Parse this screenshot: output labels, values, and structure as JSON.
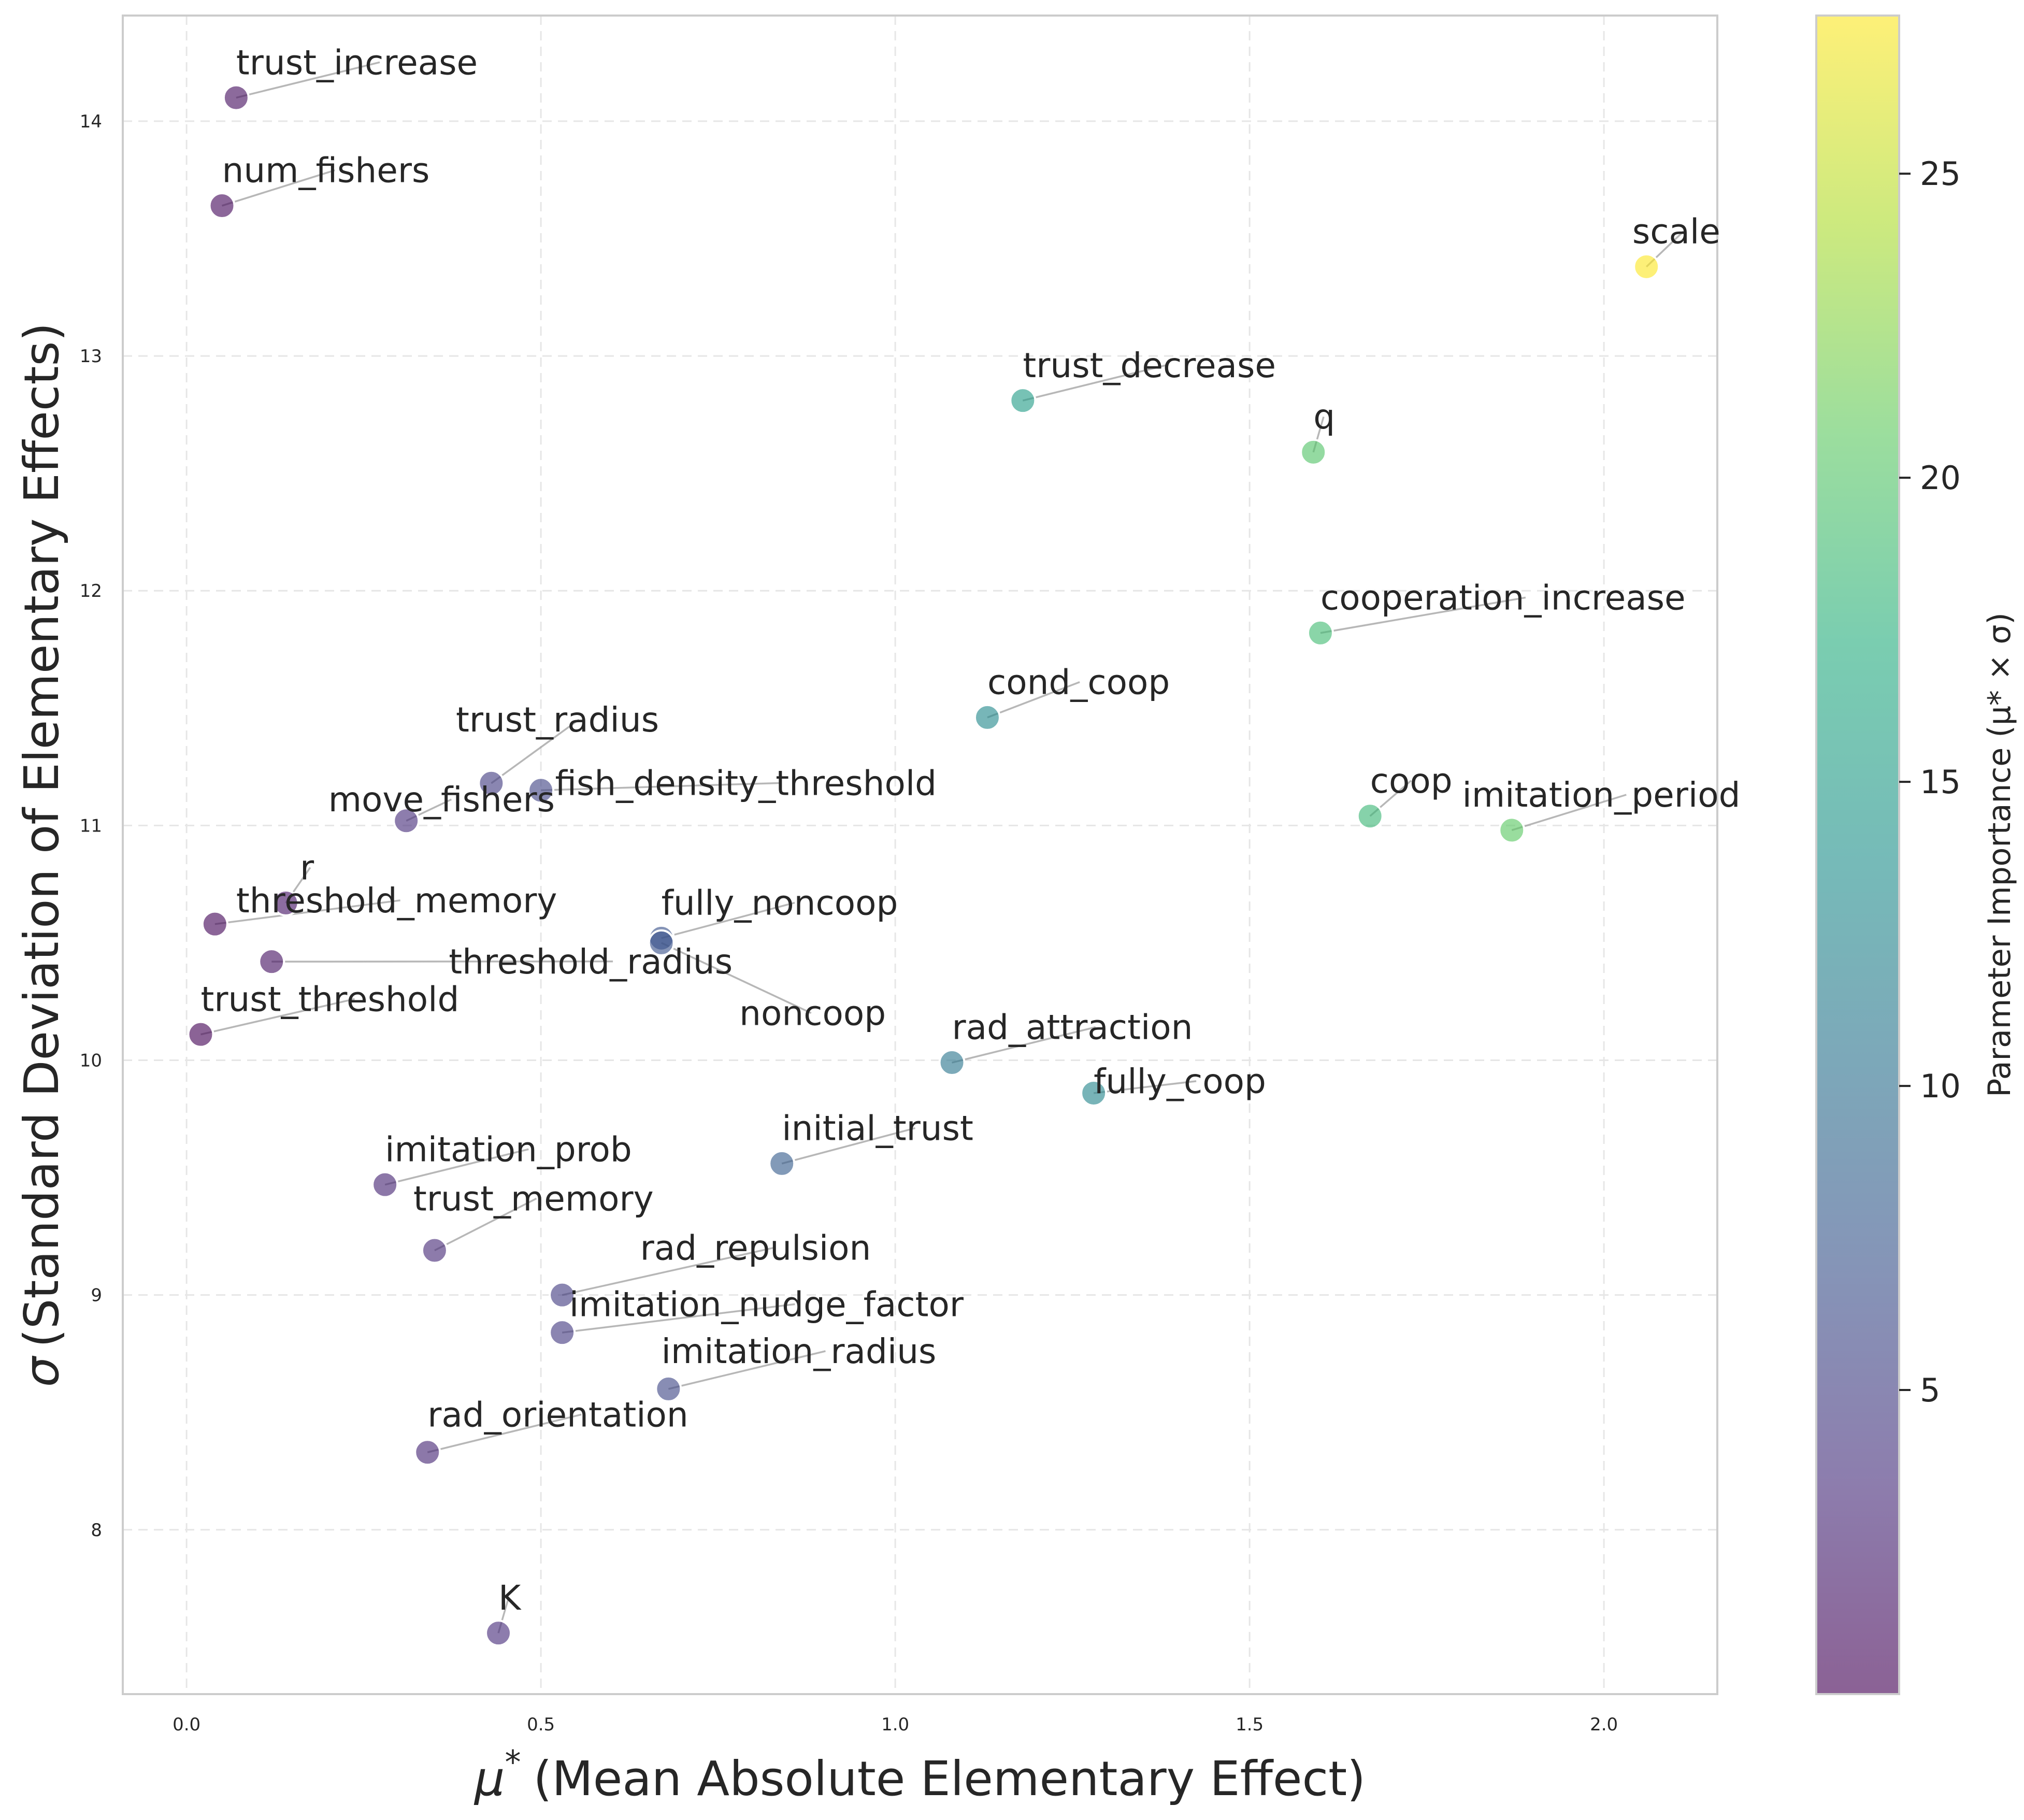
{
  "chart_data": {
    "type": "scatter",
    "xlabel_symbol": "μ",
    "xlabel_sup": "*",
    "xlabel": "(Mean Absolute Elementary Effect)",
    "ylabel_symbol": "σ",
    "ylabel": "(Standard Deviation of Elementary Effects)",
    "colorbar_label": "Parameter Importance (μ* × σ)",
    "xlim": [
      -0.09,
      2.16
    ],
    "ylim": [
      7.3,
      14.45
    ],
    "xticks": [
      0.0,
      0.5,
      1.0,
      1.5,
      2.0
    ],
    "xtick_labels": [
      "0.0",
      "0.5",
      "1.0",
      "1.5",
      "2.0"
    ],
    "yticks": [
      8,
      9,
      10,
      11,
      12,
      13,
      14
    ],
    "ytick_labels": [
      "8",
      "9",
      "10",
      "11",
      "12",
      "13",
      "14"
    ],
    "colorbar_range": [
      0,
      27.6
    ],
    "colorbar_ticks": [
      5,
      10,
      15,
      20,
      25
    ],
    "colorbar_tick_labels": [
      "5",
      "10",
      "15",
      "20",
      "25"
    ],
    "colormap": "viridis",
    "grid": true,
    "points": [
      {
        "name": "trust_increase",
        "x": 0.07,
        "y": 14.1,
        "label_x": 0.07,
        "label_y": 14.2
      },
      {
        "name": "num_fishers",
        "x": 0.05,
        "y": 13.64,
        "label_x": 0.05,
        "label_y": 13.74
      },
      {
        "name": "scale",
        "x": 2.06,
        "y": 13.38,
        "label_x": 2.04,
        "label_y": 13.48
      },
      {
        "name": "trust_decrease",
        "x": 1.18,
        "y": 12.81,
        "label_x": 1.18,
        "label_y": 12.91
      },
      {
        "name": "q",
        "x": 1.59,
        "y": 12.59,
        "label_x": 1.59,
        "label_y": 12.69
      },
      {
        "name": "cooperation_increase",
        "x": 1.6,
        "y": 11.82,
        "label_x": 1.6,
        "label_y": 11.92
      },
      {
        "name": "cond_coop",
        "x": 1.13,
        "y": 11.46,
        "label_x": 1.13,
        "label_y": 11.56
      },
      {
        "name": "trust_radius",
        "x": 0.43,
        "y": 11.18,
        "label_x": 0.38,
        "label_y": 11.4
      },
      {
        "name": "fish_density_threshold",
        "x": 0.5,
        "y": 11.15,
        "label_x": 0.52,
        "label_y": 11.13
      },
      {
        "name": "move_fishers",
        "x": 0.31,
        "y": 11.02,
        "label_x": 0.2,
        "label_y": 11.06
      },
      {
        "name": "coop",
        "x": 1.67,
        "y": 11.04,
        "label_x": 1.67,
        "label_y": 11.14
      },
      {
        "name": "imitation_period",
        "x": 1.87,
        "y": 10.98,
        "label_x": 1.8,
        "label_y": 11.08
      },
      {
        "name": "r",
        "x": 0.14,
        "y": 10.67,
        "label_x": 0.16,
        "label_y": 10.77
      },
      {
        "name": "threshold_memory",
        "x": 0.04,
        "y": 10.58,
        "label_x": 0.07,
        "label_y": 10.63
      },
      {
        "name": "fully_noncoop",
        "x": 0.67,
        "y": 10.52,
        "label_x": 0.67,
        "label_y": 10.62
      },
      {
        "name": "threshold_radius",
        "x": 0.12,
        "y": 10.42,
        "label_x": 0.37,
        "label_y": 10.37
      },
      {
        "name": "noncoop",
        "x": 0.67,
        "y": 10.5,
        "label_x": 0.78,
        "label_y": 10.15
      },
      {
        "name": "trust_threshold",
        "x": 0.02,
        "y": 10.11,
        "label_x": 0.02,
        "label_y": 10.21
      },
      {
        "name": "rad_attraction",
        "x": 1.08,
        "y": 9.99,
        "label_x": 1.08,
        "label_y": 10.09
      },
      {
        "name": "fully_coop",
        "x": 1.28,
        "y": 9.86,
        "label_x": 1.28,
        "label_y": 9.86
      },
      {
        "name": "initial_trust",
        "x": 0.84,
        "y": 9.56,
        "label_x": 0.84,
        "label_y": 9.66
      },
      {
        "name": "imitation_prob",
        "x": 0.28,
        "y": 9.47,
        "label_x": 0.28,
        "label_y": 9.57
      },
      {
        "name": "trust_memory",
        "x": 0.35,
        "y": 9.19,
        "label_x": 0.32,
        "label_y": 9.36
      },
      {
        "name": "rad_repulsion",
        "x": 0.53,
        "y": 9.0,
        "label_x": 0.64,
        "label_y": 9.15
      },
      {
        "name": "imitation_nudge_factor",
        "x": 0.53,
        "y": 8.84,
        "label_x": 0.54,
        "label_y": 8.91
      },
      {
        "name": "imitation_radius",
        "x": 0.68,
        "y": 8.6,
        "label_x": 0.67,
        "label_y": 8.71
      },
      {
        "name": "rad_orientation",
        "x": 0.34,
        "y": 8.33,
        "label_x": 0.34,
        "label_y": 8.44
      },
      {
        "name": "K",
        "x": 0.44,
        "y": 7.56,
        "label_x": 0.44,
        "label_y": 7.66
      }
    ]
  }
}
